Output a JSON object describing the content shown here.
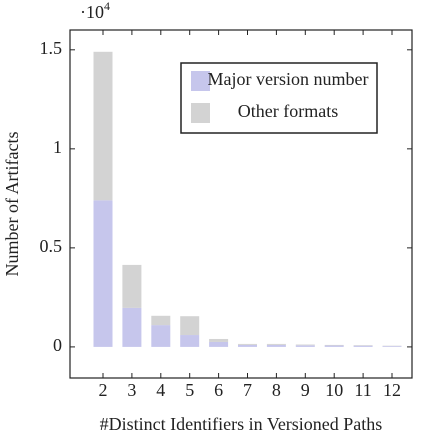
{
  "chart_data": {
    "type": "bar",
    "stacked": true,
    "xlabel": "#Distinct Identifiers in Versioned Paths",
    "ylabel": "Number of Artifacts",
    "scale_label": "·10",
    "scale_exponent": "4",
    "categories": [
      "2",
      "3",
      "4",
      "5",
      "6",
      "7",
      "8",
      "9",
      "10",
      "11",
      "12"
    ],
    "series": [
      {
        "name": "Major version number",
        "color": "#c6c6ec",
        "values": [
          7400,
          1970,
          1100,
          600,
          250,
          100,
          100,
          80,
          70,
          60,
          40
        ]
      },
      {
        "name": "Other formats",
        "color": "#d3d3d3",
        "values": [
          7500,
          2170,
          470,
          950,
          150,
          50,
          50,
          40,
          30,
          30,
          20
        ]
      }
    ],
    "ylim": [
      -1570,
      16000
    ],
    "yticks": [
      0,
      {
        "value": 5000,
        "label": "0.5"
      },
      {
        "value": 10000,
        "label": "1"
      },
      {
        "value": 15000,
        "label": "1.5"
      }
    ],
    "legend": "top-right"
  }
}
